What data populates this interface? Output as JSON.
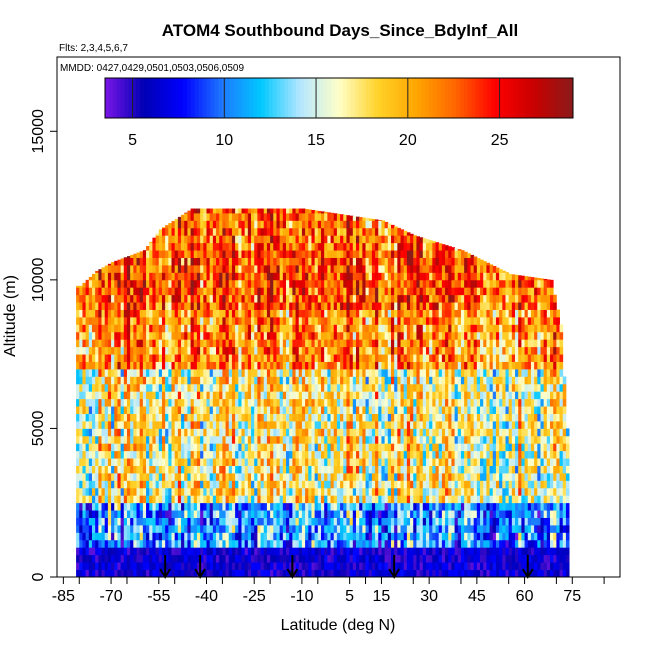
{
  "chart_data": {
    "type": "heatmap",
    "title": "ATOM4 Southbound Days_Since_BdyInf_All",
    "flights_note": "Flts: 2,3,4,5,6,7",
    "dates_note": "MMDD: 0427,0429,0501,0503,0506,0509",
    "xlabel": "Latitude (deg N)",
    "ylabel": "Altitude (m)",
    "xlim": [
      -87,
      90
    ],
    "ylim": [
      0,
      17500
    ],
    "x_ticks": [
      -85,
      -70,
      -55,
      -40,
      -25,
      -10,
      5,
      15,
      30,
      45,
      60,
      75
    ],
    "x_tick_labels": [
      "-85",
      "-70",
      "-55",
      "-40",
      "-25",
      "-10",
      "5",
      "15",
      "30",
      "45",
      "60",
      "75"
    ],
    "x_minor_ticks": [
      -80,
      -65,
      -50,
      -35,
      -20,
      -5,
      10,
      25,
      40,
      55,
      70,
      85
    ],
    "y_ticks": [
      0,
      5000,
      10000,
      15000
    ],
    "y_tick_labels": [
      "0",
      "5000",
      "10000",
      "15000"
    ],
    "colorbar": {
      "range": [
        3.5,
        29
      ],
      "ticks": [
        5,
        10,
        15,
        20,
        25
      ],
      "tick_labels": [
        "5",
        "10",
        "15",
        "20",
        "25"
      ],
      "colors": [
        "#7a16e6",
        "#0000b4",
        "#0000ff",
        "#1e78ff",
        "#00c8ff",
        "#b4e6ff",
        "#ffffc8",
        "#ffd228",
        "#ffa500",
        "#ff6400",
        "#ff0000",
        "#c80000",
        "#8b1a1a"
      ]
    },
    "vertical_profile_latitudes": [
      -53,
      -42,
      -13,
      19,
      61
    ],
    "profile_extent": [
      {
        "lat": -80,
        "top": 9800
      },
      {
        "lat": -75,
        "top": 10300
      },
      {
        "lat": -70,
        "top": 10600
      },
      {
        "lat": -60,
        "top": 11000
      },
      {
        "lat": -55,
        "top": 11700
      },
      {
        "lat": -45,
        "top": 12400
      },
      {
        "lat": -10,
        "top": 12400
      },
      {
        "lat": 15,
        "top": 12000
      },
      {
        "lat": 25,
        "top": 11500
      },
      {
        "lat": 40,
        "top": 11000
      },
      {
        "lat": 55,
        "top": 10200
      },
      {
        "lat": 68,
        "top": 10000
      },
      {
        "lat": 71,
        "top": 8500
      },
      {
        "lat": 73,
        "top": 5000
      },
      {
        "lat": 74,
        "top": 0
      }
    ],
    "bands": [
      {
        "alt": [
          0,
          1000
        ],
        "value": 6
      },
      {
        "alt": [
          1000,
          2500
        ],
        "value": 11
      },
      {
        "alt": [
          2500,
          7000
        ],
        "value": 17
      },
      {
        "alt": [
          7000,
          9000
        ],
        "value": 21
      },
      {
        "alt": [
          9000,
          11000
        ],
        "value": 23
      },
      {
        "alt": [
          11000,
          12500
        ],
        "value": 22
      }
    ]
  }
}
